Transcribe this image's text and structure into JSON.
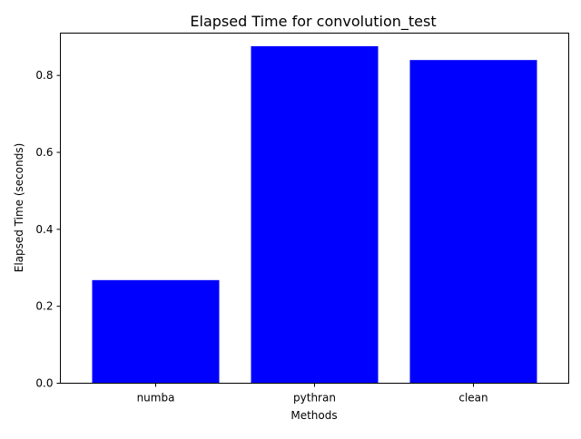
{
  "chart_data": {
    "type": "bar",
    "title": "Elapsed Time for convolution_test",
    "xlabel": "Methods",
    "ylabel": "Elapsed Time (seconds)",
    "categories": [
      "numba",
      "pythran",
      "clean"
    ],
    "values": [
      0.268,
      0.876,
      0.84
    ],
    "ylim": [
      0,
      0.91
    ],
    "yticks": [
      0.0,
      0.2,
      0.4,
      0.6,
      0.8
    ],
    "ytick_labels": [
      "0.0",
      "0.2",
      "0.4",
      "0.6",
      "0.8"
    ],
    "bar_color": "#0000ff",
    "grid": false,
    "legend": "none"
  }
}
